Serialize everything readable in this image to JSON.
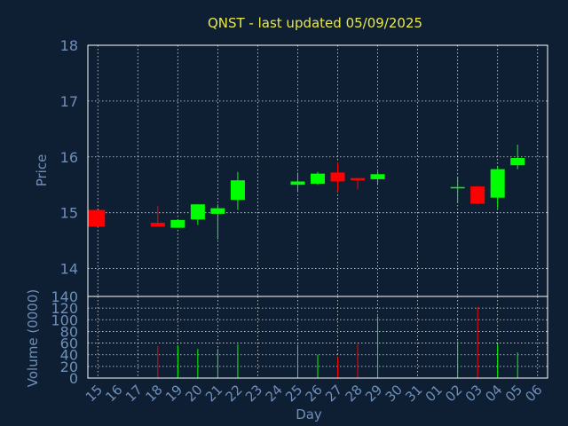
{
  "chart_data": {
    "type": "candlestick",
    "title": "QNST - last updated 05/09/2025",
    "xlabel": "Day",
    "colors": {
      "background": "#0f1f33",
      "title": "#e8e84a",
      "axis_text": "#6f8fb8",
      "frame": "#ffffff",
      "grid": "#ffffff",
      "up": "#00ff00",
      "down": "#ff0000"
    },
    "grid": true,
    "days": [
      "15",
      "16",
      "17",
      "18",
      "19",
      "20",
      "21",
      "22",
      "23",
      "24",
      "25",
      "26",
      "27",
      "28",
      "29",
      "30",
      "31",
      "01",
      "02",
      "03",
      "04",
      "05",
      "06"
    ],
    "price_panel": {
      "ylabel": "Price",
      "ylim": [
        13.5,
        18
      ],
      "yticks": [
        14,
        15,
        16,
        17,
        18
      ],
      "candles": [
        {
          "day": "15",
          "open": 15.05,
          "high": 15.05,
          "low": 14.75,
          "close": 14.75
        },
        {
          "day": "18",
          "open": 14.82,
          "high": 15.12,
          "low": 14.75,
          "close": 14.75
        },
        {
          "day": "19",
          "open": 14.73,
          "high": 14.88,
          "low": 14.73,
          "close": 14.87
        },
        {
          "day": "20",
          "open": 14.88,
          "high": 15.15,
          "low": 14.78,
          "close": 15.15
        },
        {
          "day": "21",
          "open": 14.98,
          "high": 15.15,
          "low": 14.52,
          "close": 15.08
        },
        {
          "day": "22",
          "open": 15.23,
          "high": 15.73,
          "low": 15.05,
          "close": 15.58
        },
        {
          "day": "25",
          "open": 15.5,
          "high": 15.72,
          "low": 15.38,
          "close": 15.56
        },
        {
          "day": "26",
          "open": 15.52,
          "high": 15.73,
          "low": 15.5,
          "close": 15.7
        },
        {
          "day": "27",
          "open": 15.72,
          "high": 15.9,
          "low": 15.38,
          "close": 15.56
        },
        {
          "day": "28",
          "open": 15.62,
          "high": 15.62,
          "low": 15.42,
          "close": 15.58
        },
        {
          "day": "29",
          "open": 15.6,
          "high": 15.74,
          "low": 15.52,
          "close": 15.69
        },
        {
          "day": "02",
          "open": 15.45,
          "high": 15.65,
          "low": 15.17,
          "close": 15.46
        },
        {
          "day": "03",
          "open": 15.47,
          "high": 15.48,
          "low": 15.15,
          "close": 15.16
        },
        {
          "day": "04",
          "open": 15.27,
          "high": 15.82,
          "low": 15.08,
          "close": 15.78
        },
        {
          "day": "05",
          "open": 15.85,
          "high": 16.22,
          "low": 15.78,
          "close": 15.98
        }
      ]
    },
    "volume_panel": {
      "ylabel": "Volume (0000)",
      "ylim": [
        0,
        140
      ],
      "yticks": [
        0,
        20,
        40,
        60,
        80,
        100,
        120,
        140
      ],
      "bars": [
        {
          "day": "18",
          "value": 55,
          "direction": "down"
        },
        {
          "day": "19",
          "value": 56,
          "direction": "up"
        },
        {
          "day": "20",
          "value": 50,
          "direction": "up"
        },
        {
          "day": "21",
          "value": 50,
          "direction": "up"
        },
        {
          "day": "22",
          "value": 58,
          "direction": "up"
        },
        {
          "day": "25",
          "value": 57,
          "direction": "up"
        },
        {
          "day": "26",
          "value": 40,
          "direction": "up"
        },
        {
          "day": "27",
          "value": 36,
          "direction": "down"
        },
        {
          "day": "28",
          "value": 59,
          "direction": "down"
        },
        {
          "day": "29",
          "value": 106,
          "direction": "up"
        },
        {
          "day": "02",
          "value": 63,
          "direction": "up"
        },
        {
          "day": "03",
          "value": 122,
          "direction": "down"
        },
        {
          "day": "04",
          "value": 59,
          "direction": "up"
        },
        {
          "day": "05",
          "value": 44,
          "direction": "up"
        }
      ]
    }
  }
}
